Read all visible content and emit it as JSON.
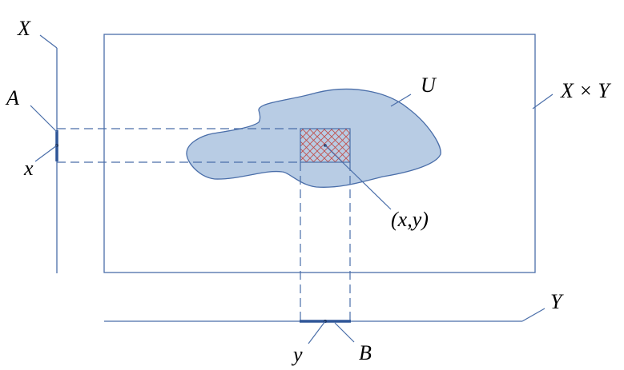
{
  "labels": {
    "x_space": "X",
    "set_a": "A",
    "point_x": "x",
    "set_u": "U",
    "product": "X × Y",
    "pair": "(x,y)",
    "y_space": "Y",
    "point_y": "y",
    "set_b": "B"
  },
  "colors": {
    "line": "#4a6ea9",
    "region_fill": "#b8cce4",
    "hatch": "#c0504d",
    "thick_segment": "#2e5597",
    "point": "#1f3864"
  }
}
